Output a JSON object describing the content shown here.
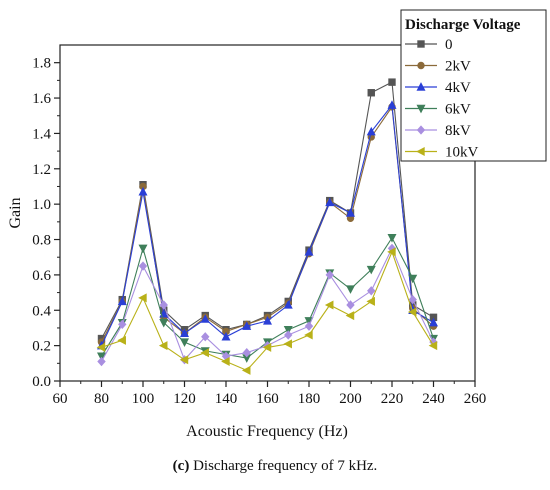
{
  "chart_data": {
    "type": "line",
    "xlabel": "Acoustic Frequency (Hz)",
    "ylabel": "Gain",
    "xlim": [
      60,
      260
    ],
    "ylim": [
      0,
      1.9
    ],
    "xticks": [
      "60",
      "80",
      "100",
      "120",
      "140",
      "160",
      "180",
      "200",
      "220",
      "240",
      "260"
    ],
    "yticks": [
      "0.0",
      "0.2",
      "0.4",
      "0.6",
      "0.8",
      "1.0",
      "1.2",
      "1.4",
      "1.6",
      "1.8"
    ],
    "legend_title": "Discharge Voltage",
    "legend_position": "top-right",
    "x": [
      80,
      90,
      100,
      110,
      120,
      130,
      140,
      150,
      160,
      170,
      180,
      190,
      200,
      210,
      220,
      230,
      240
    ],
    "series": [
      {
        "name": "0",
        "color": "#555555",
        "marker": "square",
        "values": [
          0.24,
          0.46,
          1.11,
          0.4,
          0.29,
          0.37,
          0.29,
          0.32,
          0.37,
          0.45,
          0.74,
          1.02,
          0.95,
          1.63,
          1.69,
          0.43,
          0.36
        ]
      },
      {
        "name": "2kV",
        "color": "#8b6a3a",
        "marker": "circle",
        "values": [
          0.22,
          0.45,
          1.1,
          0.36,
          0.27,
          0.36,
          0.28,
          0.32,
          0.36,
          0.44,
          0.72,
          1.01,
          0.92,
          1.38,
          1.55,
          0.41,
          0.31
        ]
      },
      {
        "name": "4kV",
        "color": "#2a3fd6",
        "marker": "triangle-up",
        "values": [
          0.2,
          0.45,
          1.07,
          0.38,
          0.27,
          0.35,
          0.25,
          0.31,
          0.34,
          0.43,
          0.73,
          1.01,
          0.95,
          1.41,
          1.56,
          0.4,
          0.33
        ]
      },
      {
        "name": "6kV",
        "color": "#3f7f5a",
        "marker": "triangle-down",
        "values": [
          0.14,
          0.33,
          0.75,
          0.33,
          0.22,
          0.17,
          0.15,
          0.13,
          0.22,
          0.29,
          0.34,
          0.61,
          0.52,
          0.63,
          0.81,
          0.58,
          0.24
        ]
      },
      {
        "name": "8kV",
        "color": "#a98fe0",
        "marker": "diamond",
        "values": [
          0.11,
          0.32,
          0.65,
          0.43,
          0.12,
          0.25,
          0.14,
          0.16,
          0.2,
          0.26,
          0.31,
          0.6,
          0.43,
          0.51,
          0.75,
          0.46,
          0.22
        ]
      },
      {
        "name": "10kV",
        "color": "#b9b119",
        "marker": "triangle-left",
        "values": [
          0.19,
          0.23,
          0.47,
          0.2,
          0.12,
          0.16,
          0.11,
          0.06,
          0.19,
          0.21,
          0.26,
          0.43,
          0.37,
          0.45,
          0.73,
          0.39,
          0.2
        ]
      }
    ]
  },
  "caption": {
    "label": "(c)",
    "text": " Discharge frequency of 7 kHz."
  }
}
